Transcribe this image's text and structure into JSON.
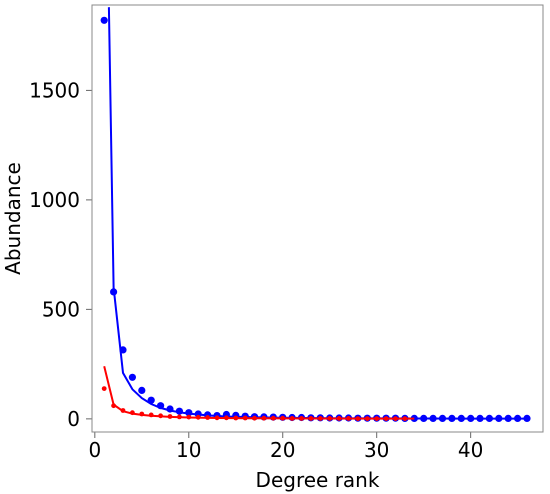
{
  "chart_data": {
    "type": "scatter",
    "title": "",
    "xlabel": "Degree rank",
    "ylabel": "Abundance",
    "xlim": [
      -0.3,
      47.7
    ],
    "ylim": [
      -60,
      1890
    ],
    "xticks": [
      0,
      10,
      20,
      30,
      40
    ],
    "yticks": [
      0,
      500,
      1000,
      1500
    ],
    "grid": false,
    "legend": "none",
    "series": [
      {
        "color": "#0000ff",
        "points": {
          "x": [
            1,
            2,
            3,
            4,
            5,
            6,
            7,
            8,
            9,
            10,
            11,
            12,
            13,
            14,
            15,
            16,
            17,
            18,
            19,
            20,
            21,
            22,
            23,
            24,
            25,
            26,
            27,
            28,
            29,
            30,
            31,
            32,
            33,
            34,
            35,
            36,
            37,
            38,
            39,
            40,
            41,
            42,
            43,
            44,
            45,
            46
          ],
          "y": [
            1820,
            580,
            315,
            190,
            130,
            85,
            60,
            45,
            35,
            28,
            22,
            18,
            15,
            20,
            16,
            12,
            10,
            9,
            8,
            7,
            6,
            6,
            5,
            5,
            4,
            4,
            4,
            3,
            3,
            3,
            3,
            3,
            2,
            2,
            2,
            2,
            2,
            2,
            2,
            2,
            2,
            2,
            2,
            2,
            2,
            2
          ]
        },
        "fit_line": {
          "x": [
            1.5,
            2,
            3,
            4,
            5,
            6,
            7,
            8,
            9,
            10,
            12,
            14,
            17,
            20,
            25,
            30,
            35,
            40,
            46
          ],
          "y": [
            1880,
            600,
            210,
            135,
            95,
            68,
            50,
            38,
            30,
            24,
            16,
            11,
            7,
            5,
            3,
            2,
            1.5,
            1,
            1
          ]
        }
      },
      {
        "color": "#ff0000",
        "points": {
          "x": [
            1,
            2,
            3,
            4,
            5,
            6,
            7,
            8,
            9,
            10,
            11,
            12,
            13,
            14,
            15,
            16,
            17,
            18,
            19,
            20,
            21,
            22,
            23,
            24,
            25,
            26,
            27,
            28,
            29,
            30,
            31,
            32,
            33
          ],
          "y": [
            138,
            60,
            38,
            28,
            22,
            18,
            14,
            11,
            9,
            8,
            7,
            6,
            5,
            5,
            4,
            4,
            3,
            3,
            3,
            3,
            2,
            2,
            2,
            2,
            2,
            2,
            2,
            1,
            1,
            1,
            1,
            1,
            1
          ]
        },
        "fit_line": {
          "x": [
            1,
            2,
            3,
            4,
            5,
            6,
            8,
            10,
            13,
            16,
            20,
            25,
            30,
            34
          ],
          "y": [
            240,
            65,
            35,
            24,
            18,
            14,
            9,
            6,
            4,
            3,
            2,
            1.5,
            1,
            1
          ]
        }
      }
    ]
  }
}
